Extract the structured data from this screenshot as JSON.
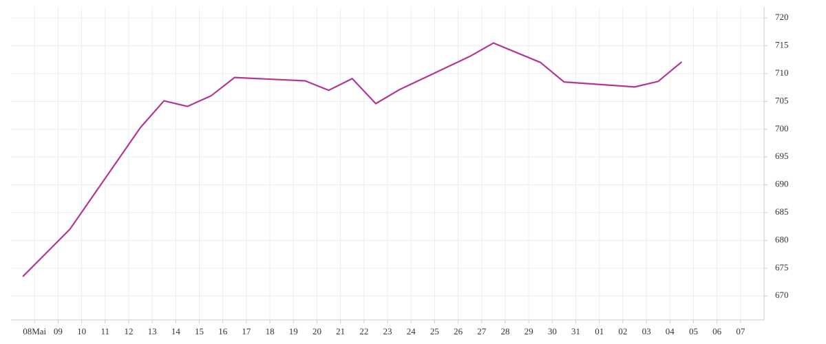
{
  "chart_data": {
    "type": "line",
    "x": [
      -0.5,
      1.5,
      4.5,
      5.5,
      6.5,
      7.5,
      8.5,
      11.5,
      12.5,
      13.5,
      14.5,
      15.5,
      18.5,
      19.5,
      21.5,
      22.5,
      25.5,
      26.5,
      27.5
    ],
    "series": [
      {
        "color": "#b5368e",
        "values": [
          673.5,
          682,
          700.3,
          705.1,
          704.1,
          706,
          709.3,
          708.7,
          707,
          709.1,
          704.6,
          707.1,
          713.1,
          715.5,
          712,
          708.5,
          707.6,
          708.6,
          712.1
        ]
      }
    ],
    "xlim": [
      -1,
      31
    ],
    "xticks": [
      {
        "value": 0,
        "label": "08Mai"
      },
      {
        "value": 1,
        "label": "09"
      },
      {
        "value": 2,
        "label": "10"
      },
      {
        "value": 3,
        "label": "11"
      },
      {
        "value": 4,
        "label": "12"
      },
      {
        "value": 5,
        "label": "13"
      },
      {
        "value": 6,
        "label": "14"
      },
      {
        "value": 7,
        "label": "15"
      },
      {
        "value": 8,
        "label": "16"
      },
      {
        "value": 9,
        "label": "17"
      },
      {
        "value": 10,
        "label": "18"
      },
      {
        "value": 11,
        "label": "19"
      },
      {
        "value": 12,
        "label": "20"
      },
      {
        "value": 13,
        "label": "21"
      },
      {
        "value": 14,
        "label": "22"
      },
      {
        "value": 15,
        "label": "23"
      },
      {
        "value": 16,
        "label": "24"
      },
      {
        "value": 17,
        "label": "25"
      },
      {
        "value": 18,
        "label": "26"
      },
      {
        "value": 19,
        "label": "27"
      },
      {
        "value": 20,
        "label": "28"
      },
      {
        "value": 21,
        "label": "29"
      },
      {
        "value": 22,
        "label": "30"
      },
      {
        "value": 23,
        "label": "31"
      },
      {
        "value": 24,
        "label": "01"
      },
      {
        "value": 25,
        "label": "02"
      },
      {
        "value": 26,
        "label": "03"
      },
      {
        "value": 27,
        "label": "04"
      },
      {
        "value": 28,
        "label": "05"
      },
      {
        "value": 29,
        "label": "06"
      },
      {
        "value": 30,
        "label": "07"
      }
    ],
    "ylim": [
      665.7,
      722
    ],
    "yticks": [
      670,
      675,
      680,
      685,
      690,
      695,
      700,
      705,
      710,
      715,
      720
    ],
    "grid": true,
    "y_axis_side": "right"
  }
}
